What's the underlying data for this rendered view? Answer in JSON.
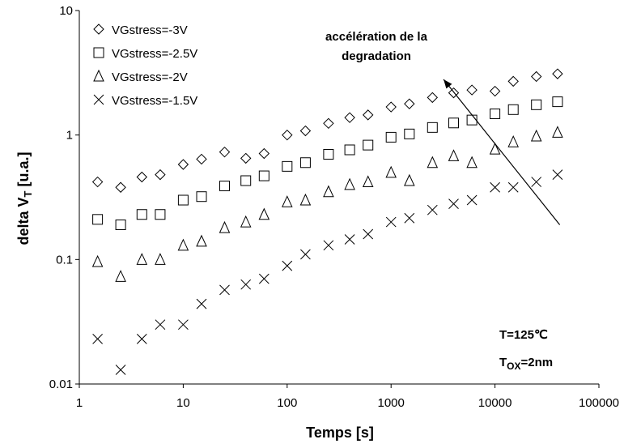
{
  "chart_data": {
    "type": "scatter",
    "title": "",
    "xlabel": "Temps [s]",
    "ylabel_main": "delta V",
    "ylabel_sub": "T",
    "ylabel_unit": " [u.a.]",
    "xscale": "log",
    "yscale": "log",
    "xlim": [
      1,
      100000
    ],
    "ylim": [
      0.01,
      10
    ],
    "grid": false,
    "legend_position": "top-left",
    "x_tick_labels": [
      "1",
      "10",
      "100",
      "1000",
      "10000",
      "100000"
    ],
    "y_tick_labels": [
      "0.01",
      "0.1",
      "1",
      "10"
    ],
    "series": [
      {
        "name": "VGstress=-3V",
        "marker": "diamond",
        "x": [
          1.5,
          2.5,
          4,
          6,
          10,
          15,
          25,
          40,
          60,
          100,
          150,
          250,
          400,
          600,
          1000,
          1500,
          2500,
          4000,
          6000,
          10000,
          15000,
          25000,
          40000
        ],
        "y": [
          0.42,
          0.38,
          0.46,
          0.48,
          0.58,
          0.64,
          0.73,
          0.65,
          0.71,
          1.0,
          1.08,
          1.24,
          1.38,
          1.45,
          1.68,
          1.78,
          2.0,
          2.18,
          2.3,
          2.25,
          2.7,
          2.95,
          3.1
        ]
      },
      {
        "name": "VGstress=-2.5V",
        "marker": "square",
        "x": [
          1.5,
          2.5,
          4,
          6,
          10,
          15,
          25,
          40,
          60,
          100,
          150,
          250,
          400,
          600,
          1000,
          1500,
          2500,
          4000,
          6000,
          10000,
          15000,
          25000,
          40000
        ],
        "y": [
          0.21,
          0.19,
          0.23,
          0.23,
          0.3,
          0.32,
          0.39,
          0.43,
          0.47,
          0.56,
          0.6,
          0.7,
          0.76,
          0.83,
          0.96,
          1.02,
          1.15,
          1.25,
          1.32,
          1.48,
          1.6,
          1.75,
          1.85
        ]
      },
      {
        "name": "VGstress=-2V",
        "marker": "triangle",
        "x": [
          1.5,
          2.5,
          4,
          6,
          10,
          15,
          25,
          40,
          60,
          100,
          150,
          250,
          400,
          600,
          1000,
          1500,
          2500,
          4000,
          6000,
          10000,
          15000,
          25000,
          40000
        ],
        "y": [
          0.096,
          0.073,
          0.1,
          0.1,
          0.13,
          0.14,
          0.18,
          0.2,
          0.23,
          0.29,
          0.3,
          0.35,
          0.4,
          0.42,
          0.5,
          0.43,
          0.6,
          0.68,
          0.6,
          0.77,
          0.88,
          0.98,
          1.05
        ]
      },
      {
        "name": "VGstress=-1.5V",
        "marker": "cross",
        "x": [
          1.5,
          2.5,
          4,
          6,
          10,
          15,
          25,
          40,
          60,
          100,
          150,
          250,
          400,
          600,
          1000,
          1500,
          2500,
          4000,
          6000,
          10000,
          15000,
          25000,
          40000
        ],
        "y": [
          0.023,
          0.013,
          0.023,
          0.03,
          0.03,
          0.044,
          0.057,
          0.063,
          0.07,
          0.089,
          0.11,
          0.13,
          0.145,
          0.16,
          0.2,
          0.215,
          0.25,
          0.28,
          0.3,
          0.38,
          0.38,
          0.42,
          0.48
        ]
      }
    ],
    "annotations": {
      "arrow_label_line1": "accélération de la",
      "arrow_label_line2": "degradation",
      "arrow_from": {
        "x": 42000,
        "y": 0.19
      },
      "arrow_to": {
        "x": 3200,
        "y": 2.8
      },
      "temp_label": "T=125℃",
      "tox_main": "T",
      "tox_sub": "OX",
      "tox_rest": "=2nm"
    }
  }
}
